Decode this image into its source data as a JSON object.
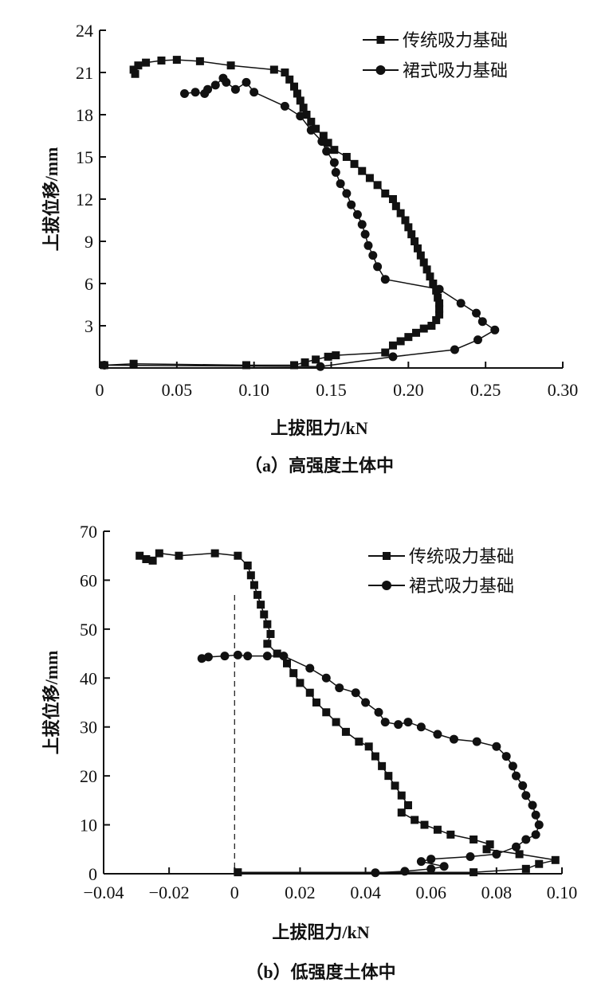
{
  "chart_data": [
    {
      "type": "line",
      "caption": "（a）高强度土体中",
      "xlabel": "上拔阻力/kN",
      "ylabel": "上拔位移/mm",
      "xlim": [
        0,
        0.3
      ],
      "ylim": [
        0,
        24
      ],
      "xticks": [
        0,
        0.05,
        0.1,
        0.15,
        0.2,
        0.25,
        0.3
      ],
      "xtick_labels": [
        "0",
        "0.05",
        "0.10",
        "0.15",
        "0.20",
        "0.25",
        "0.30"
      ],
      "yticks": [
        3,
        6,
        9,
        12,
        15,
        18,
        21,
        24
      ],
      "ytick_labels": [
        "3",
        "6",
        "9",
        "12",
        "15",
        "18",
        "21",
        "24"
      ],
      "legend_position": "top-right",
      "zero_line": false,
      "series": [
        {
          "name": "传统吸力基础",
          "marker": "square",
          "x": [
            0.003,
            0.022,
            0.095,
            0.126,
            0.133,
            0.14,
            0.148,
            0.153,
            0.185,
            0.19,
            0.195,
            0.2,
            0.205,
            0.21,
            0.215,
            0.218,
            0.22,
            0.22,
            0.22,
            0.219,
            0.218,
            0.216,
            0.214,
            0.212,
            0.21,
            0.208,
            0.206,
            0.204,
            0.202,
            0.2,
            0.198,
            0.195,
            0.192,
            0.19,
            0.185,
            0.18,
            0.175,
            0.17,
            0.165,
            0.16,
            0.152,
            0.148,
            0.145,
            0.14,
            0.137,
            0.134,
            0.132,
            0.13,
            0.128,
            0.126,
            0.123,
            0.12,
            0.113,
            0.085,
            0.065,
            0.05,
            0.04,
            0.03,
            0.025,
            0.022,
            0.023
          ],
          "y": [
            0.2,
            0.3,
            0.2,
            0.2,
            0.4,
            0.6,
            0.8,
            0.9,
            1.1,
            1.6,
            1.9,
            2.2,
            2.5,
            2.8,
            3.0,
            3.4,
            3.8,
            4.2,
            4.6,
            5.0,
            5.5,
            6.0,
            6.5,
            7.0,
            7.5,
            8.0,
            8.5,
            9.0,
            9.5,
            10,
            10.5,
            11,
            11.5,
            12,
            12.4,
            13,
            13.5,
            14,
            14.5,
            15,
            15.5,
            16,
            16.5,
            17,
            17.5,
            18,
            18.5,
            19,
            19.5,
            20,
            20.5,
            21,
            21.2,
            21.5,
            21.8,
            21.9,
            21.85,
            21.7,
            21.5,
            21.2,
            20.9
          ]
        },
        {
          "name": "裙式吸力基础",
          "marker": "circle",
          "x": [
            0.003,
            0.143,
            0.19,
            0.23,
            0.245,
            0.256,
            0.248,
            0.244,
            0.234,
            0.22,
            0.185,
            0.18,
            0.177,
            0.174,
            0.172,
            0.17,
            0.167,
            0.163,
            0.16,
            0.156,
            0.153,
            0.152,
            0.147,
            0.144,
            0.137,
            0.13,
            0.12,
            0.1,
            0.095,
            0.088,
            0.082,
            0.08,
            0.075,
            0.07,
            0.068,
            0.062,
            0.055
          ],
          "y": [
            0.2,
            0.1,
            0.8,
            1.3,
            2.0,
            2.7,
            3.3,
            3.9,
            4.6,
            5.6,
            6.3,
            7.2,
            8.0,
            8.7,
            9.5,
            10.2,
            10.9,
            11.6,
            12.4,
            13.1,
            13.9,
            14.6,
            15.4,
            16.1,
            16.9,
            17.9,
            18.6,
            19.6,
            20.3,
            19.8,
            20.3,
            20.6,
            20.1,
            19.8,
            19.5,
            19.6,
            19.5
          ]
        }
      ]
    },
    {
      "type": "line",
      "caption": "（b）低强度土体中",
      "xlabel": "上拔阻力/kN",
      "ylabel": "上拔位移/mm",
      "xlim": [
        -0.04,
        0.1
      ],
      "ylim": [
        0,
        70
      ],
      "xticks": [
        -0.04,
        -0.02,
        0,
        0.02,
        0.04,
        0.06,
        0.08,
        0.1
      ],
      "xtick_labels": [
        "−0.04",
        "−0.02",
        "0",
        "0.02",
        "0.04",
        "0.06",
        "0.08",
        "0.10"
      ],
      "yticks": [
        0,
        10,
        20,
        30,
        40,
        50,
        60,
        70
      ],
      "ytick_labels": [
        "0",
        "10",
        "20",
        "30",
        "40",
        "50",
        "60",
        "70"
      ],
      "legend_position": "top-right",
      "zero_line": true,
      "series": [
        {
          "name": "传统吸力基础",
          "marker": "square",
          "x": [
            0.001,
            0.073,
            0.089,
            0.093,
            0.098,
            0.087,
            0.077,
            0.078,
            0.073,
            0.066,
            0.062,
            0.058,
            0.055,
            0.051,
            0.053,
            0.051,
            0.049,
            0.047,
            0.045,
            0.043,
            0.041,
            0.038,
            0.034,
            0.031,
            0.028,
            0.025,
            0.023,
            0.02,
            0.018,
            0.016,
            0.013,
            0.01,
            0.011,
            0.01,
            0.009,
            0.008,
            0.007,
            0.006,
            0.005,
            0.004,
            0.001,
            -0.006,
            -0.017,
            -0.023,
            -0.025,
            -0.027,
            -0.029
          ],
          "y": [
            0.3,
            0.3,
            1,
            2,
            2.8,
            4,
            5,
            6,
            7,
            8,
            9,
            10,
            11,
            12.5,
            14,
            16,
            18,
            20,
            22,
            24,
            26,
            27,
            29,
            31,
            33,
            35,
            37,
            39,
            41,
            43,
            45,
            47,
            49,
            51,
            53,
            55,
            57,
            59,
            61,
            63,
            65,
            65.5,
            65,
            65.5,
            64,
            64.3,
            65
          ]
        },
        {
          "name": "裙式吸力基础",
          "marker": "circle",
          "x": [
            0.043,
            0.052,
            0.06,
            0.064,
            0.057,
            0.06,
            0.072,
            0.08,
            0.086,
            0.089,
            0.092,
            0.093,
            0.092,
            0.091,
            0.089,
            0.088,
            0.086,
            0.085,
            0.083,
            0.08,
            0.074,
            0.067,
            0.062,
            0.057,
            0.053,
            0.05,
            0.046,
            0.044,
            0.04,
            0.037,
            0.032,
            0.028,
            0.023,
            0.015,
            0.01,
            0.004,
            0.001,
            -0.003,
            -0.008,
            -0.01
          ],
          "y": [
            0.2,
            0.5,
            1,
            1.5,
            2.5,
            3,
            3.5,
            4,
            5.5,
            7,
            8,
            10,
            12,
            14,
            16,
            18,
            20,
            22,
            24,
            26,
            27,
            27.5,
            28.5,
            30,
            31,
            30.5,
            31,
            33,
            35,
            37,
            38,
            40,
            42,
            44.5,
            44.5,
            44.5,
            44.7,
            44.5,
            44.3,
            44
          ]
        }
      ]
    }
  ]
}
